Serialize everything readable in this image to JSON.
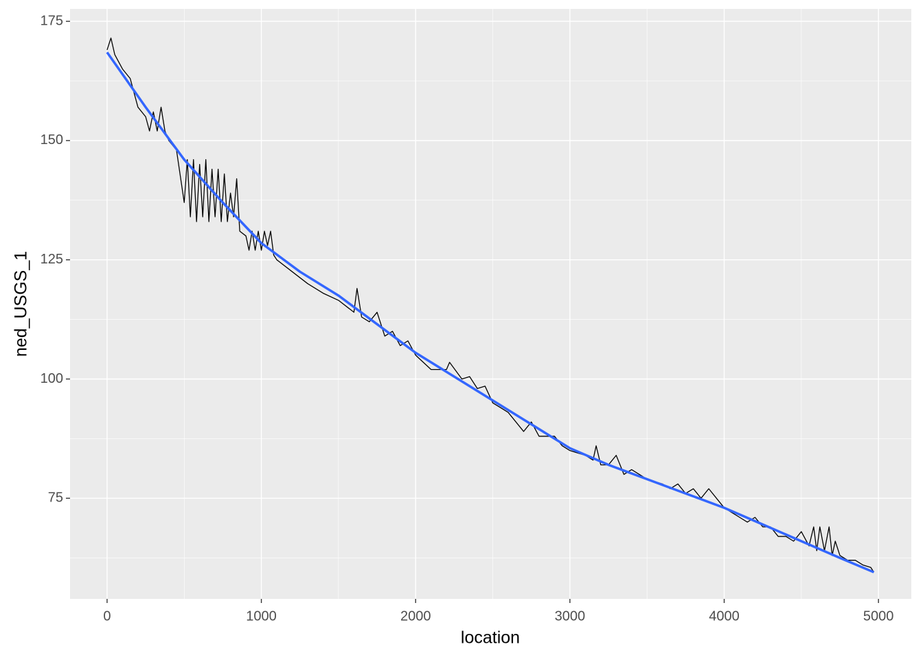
{
  "chart_data": {
    "type": "line",
    "x_label": "location",
    "y_label": "ned_USGS_1",
    "xlim": [
      -240,
      5213
    ],
    "ylim": [
      53.9,
      177.6
    ],
    "xticks": [
      0,
      1000,
      2000,
      3000,
      4000,
      5000
    ],
    "yticks": [
      75,
      100,
      125,
      150,
      175
    ],
    "x_minor": [
      500,
      1500,
      2500,
      3500,
      4500
    ],
    "y_minor": [
      62.5,
      87.5,
      112.5,
      137.5,
      162.5
    ],
    "grid": true,
    "panel_color": "#ebebeb",
    "series": [
      {
        "color": "#000000",
        "width": 1.3,
        "x": [
          0,
          25,
          50,
          100,
          150,
          200,
          250,
          275,
          300,
          325,
          350,
          375,
          400,
          450,
          500,
          520,
          540,
          560,
          580,
          600,
          620,
          640,
          660,
          680,
          700,
          720,
          740,
          760,
          780,
          800,
          820,
          840,
          860,
          900,
          920,
          940,
          960,
          980,
          1000,
          1020,
          1040,
          1060,
          1080,
          1100,
          1200,
          1300,
          1400,
          1500,
          1600,
          1620,
          1650,
          1700,
          1750,
          1800,
          1850,
          1900,
          1950,
          2000,
          2100,
          2200,
          2220,
          2300,
          2350,
          2400,
          2450,
          2500,
          2550,
          2600,
          2650,
          2700,
          2750,
          2800,
          2850,
          2900,
          2950,
          3000,
          3100,
          3150,
          3170,
          3200,
          3250,
          3300,
          3350,
          3400,
          3450,
          3500,
          3600,
          3650,
          3700,
          3750,
          3800,
          3850,
          3900,
          3950,
          4000,
          4050,
          4100,
          4150,
          4200,
          4250,
          4300,
          4350,
          4400,
          4450,
          4500,
          4550,
          4580,
          4600,
          4620,
          4650,
          4680,
          4700,
          4720,
          4750,
          4800,
          4850,
          4900,
          4950,
          4970
        ],
        "values": [
          169,
          171.5,
          168,
          165,
          163,
          157,
          155,
          152,
          156,
          152,
          157,
          152,
          150,
          148,
          137,
          146,
          134,
          146,
          133,
          145,
          134,
          146,
          133,
          144,
          134,
          144,
          133,
          143,
          133,
          139,
          134,
          142,
          131,
          130,
          127,
          131,
          127,
          131,
          127,
          131,
          128,
          131,
          126,
          125,
          122.5,
          120,
          118,
          116.5,
          114,
          119,
          113,
          112,
          114,
          109,
          110,
          107,
          108,
          105,
          102,
          102,
          103.5,
          100,
          100.5,
          98,
          98.5,
          95,
          94,
          93,
          91,
          89,
          91,
          88,
          88,
          88,
          86,
          85,
          84,
          83,
          86,
          82,
          82,
          84,
          80,
          81,
          80,
          79,
          78,
          77,
          78,
          76,
          77,
          75,
          77,
          75,
          73,
          72,
          71,
          70,
          71,
          69,
          69,
          67,
          67,
          66,
          68,
          65,
          69,
          64,
          69,
          64,
          69,
          63,
          66,
          63,
          62,
          62,
          61,
          60.5,
          59.5
        ]
      },
      {
        "color": "#3366ff",
        "width": 3.5,
        "x": [
          0,
          250,
          500,
          750,
          1000,
          1250,
          1500,
          1750,
          2000,
          2250,
          2500,
          2750,
          3000,
          3250,
          3500,
          3750,
          4000,
          4250,
          4500,
          4750,
          4970
        ],
        "values": [
          168.5,
          157,
          146,
          137,
          128.5,
          122.5,
          117.5,
          111.5,
          105.5,
          100.5,
          95.5,
          90.5,
          85.5,
          82,
          79,
          76,
          73,
          69.5,
          66,
          62.5,
          59.5
        ]
      }
    ]
  }
}
